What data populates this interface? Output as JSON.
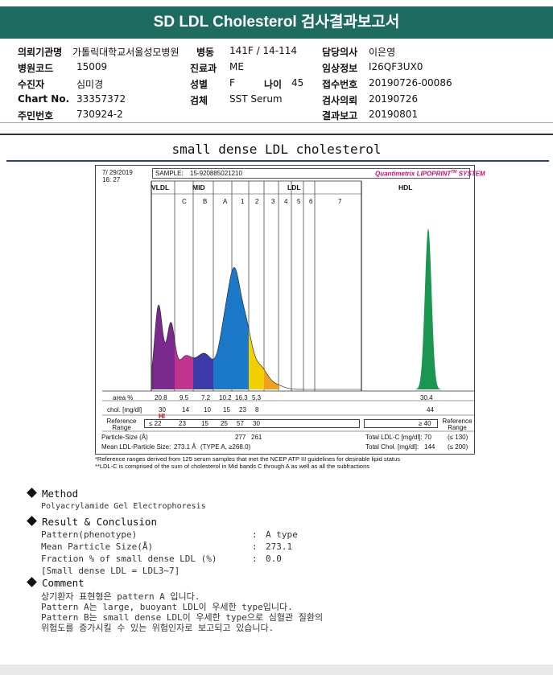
{
  "header": {
    "title": "SD LDL Cholesterol 검사결과보고서"
  },
  "patient": {
    "institution_label": "의뢰기관명",
    "institution": "가톨릭대학교서울성모병원",
    "ward_label": "병동",
    "ward": "141F / 14-114",
    "doctor_label": "담당의사",
    "doctor": "이은영",
    "hospcode_label": "병원코드",
    "hospcode": "15009",
    "dept_label": "진료과",
    "dept": "ME",
    "clinical_label": "임상정보",
    "clinical": "I26QF3UX0",
    "examinee_label": "수진자",
    "examinee": "심미경",
    "sex_label": "성별",
    "sex": "F",
    "age_label": "나이",
    "age": "45",
    "receipt_label": "접수번호",
    "receipt": "20190726-00086",
    "chart_label": "Chart No.",
    "chart": "33357372",
    "specimen_label": "검체",
    "specimen": "SST Serum",
    "request_label": "검사의뢰",
    "request": "20190726",
    "id_label": "주민번호",
    "id": "730924-2",
    "report_label": "결과보고",
    "report": "20190801"
  },
  "section": {
    "title": "small dense LDL cholesterol"
  },
  "lipoprint": {
    "date": "7/ 29/2019",
    "time": "16: 27",
    "sample_label": "SAMPLE:",
    "sample": "15-920885021210",
    "brand": "Quantimetrix LIPOPRINT",
    "brand_tm": "TM",
    "brand_suffix": " SYSTEM",
    "band_vldl": "VLDL",
    "band_mid": "MID",
    "band_ldl": "LDL",
    "band_hdl": "HDL",
    "mid_sub": [
      "C",
      "B",
      "A"
    ],
    "ldl_sub": [
      "1",
      "2",
      "3",
      "4",
      "5",
      "6",
      "7"
    ],
    "row_area_label": "area %",
    "area": [
      "20.8",
      "9.5",
      "7.2",
      "10.2",
      "16.3",
      "5.3"
    ],
    "area_hdl": "30.4",
    "row_chol_label": "chol. [mg/dl]",
    "chol": [
      "30",
      "14",
      "10",
      "15",
      "23",
      "8"
    ],
    "chol_hdl": "44",
    "chol_flag": "HI",
    "ref_label": "Reference Range",
    "ref_values": [
      "≤ 22",
      "23",
      "15",
      "25",
      "57",
      "30"
    ],
    "ref_hdl": "≥ 40",
    "ref_right_label": "Reference Range",
    "ps_label": "Particle-Size (Å)",
    "ps_values": [
      "277",
      "261"
    ],
    "mean_label": "Mean LDL-Particle Size:",
    "mean_value": "273.1 Å",
    "mean_type": "(TYPE A, ≥268.0)",
    "total_ldl_label": "Total LDL-C [mg/dl]:",
    "total_ldl": "70",
    "total_ldl_ref": "(≤ 130)",
    "total_chol_label": "Total Chol. [mg/dl]:",
    "total_chol": "144",
    "total_chol_ref": "(≤ 200)"
  },
  "notes": [
    "*Reference ranges derived from 125 serum samples that met the NCEP ATP III guidelines for desirable lipid status",
    "**LDL-C is comprised of the sum of cholesterol in Mid bands C through A as well as all the subfractions"
  ],
  "method": {
    "heading": "Method",
    "text": "Polyacrylamide Gel Electrophoresis"
  },
  "result": {
    "heading": "Result & Conclusion",
    "rows": [
      {
        "label": "Pattern(phenotype)",
        "sep": ":",
        "value": "A type"
      },
      {
        "label": "Mean Particle Size(Å)",
        "sep": ":",
        "value": "273.1"
      },
      {
        "label": "Fraction % of small dense LDL (%)",
        "sep": ":",
        "value": "0.0"
      }
    ],
    "note": "[Small dense LDL = LDL3~7]"
  },
  "comment": {
    "heading": "Comment",
    "lines": [
      "상기환자 표현형은 pattern A 입니다.",
      "Pattern A는 large, buoyant LDL이 우세한 type입니다.",
      "Pattern B는 small dense LDL이 우세한 type으로 심혈관 질환의",
      "위험도를 증가시킬 수 있는 위험인자로 보고되고 있습니다."
    ]
  },
  "colors": {
    "title_bg": "#1e6b60",
    "vldl": "#7a2a8c",
    "midc": "#c2328f",
    "midb": "#3a3aa8",
    "mida": "#1c78c8",
    "ldl1": "#f0d000",
    "ldl2": "#f0a020",
    "hdl": "#1a9650",
    "brand": "#cc1177"
  }
}
